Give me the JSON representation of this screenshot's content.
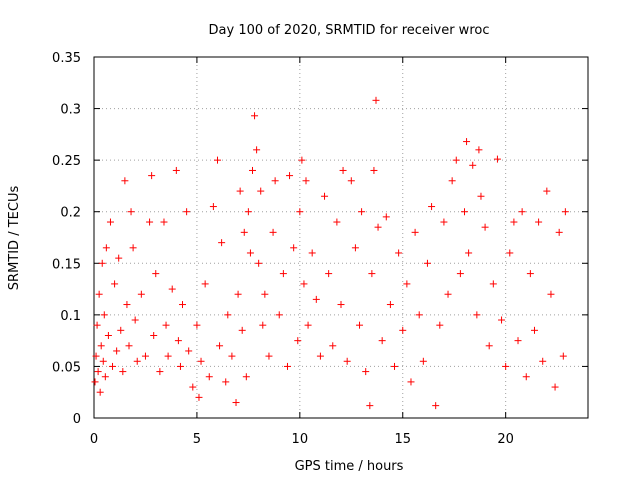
{
  "chart_data": {
    "type": "scatter",
    "title": "Day 100 of 2020, SRMTID for receiver wroc",
    "xlabel": "GPS time / hours",
    "ylabel": "SRMTID / TECUs",
    "xlim": [
      0,
      24
    ],
    "ylim": [
      0,
      0.35
    ],
    "x_ticks": [
      0,
      5,
      10,
      15,
      20
    ],
    "x_tick_labels": [
      "0",
      "5",
      "10",
      "15",
      "20"
    ],
    "y_ticks": [
      0,
      0.05,
      0.1,
      0.15,
      0.2,
      0.25,
      0.3,
      0.35
    ],
    "y_tick_labels": [
      "0",
      "0.05",
      "0.1",
      "0.15",
      "0.2",
      "0.25",
      "0.3",
      "0.35"
    ],
    "grid": true,
    "marker": "+",
    "color": "#ff0000",
    "series": [
      {
        "name": "SRMTID",
        "points": [
          [
            0.05,
            0.035
          ],
          [
            0.1,
            0.06
          ],
          [
            0.15,
            0.09
          ],
          [
            0.2,
            0.045
          ],
          [
            0.25,
            0.12
          ],
          [
            0.3,
            0.025
          ],
          [
            0.35,
            0.07
          ],
          [
            0.4,
            0.15
          ],
          [
            0.45,
            0.055
          ],
          [
            0.5,
            0.1
          ],
          [
            0.55,
            0.04
          ],
          [
            0.6,
            0.165
          ],
          [
            0.7,
            0.08
          ],
          [
            0.8,
            0.19
          ],
          [
            0.9,
            0.05
          ],
          [
            1.0,
            0.13
          ],
          [
            1.1,
            0.065
          ],
          [
            1.2,
            0.155
          ],
          [
            1.3,
            0.085
          ],
          [
            1.4,
            0.045
          ],
          [
            1.5,
            0.23
          ],
          [
            1.6,
            0.11
          ],
          [
            1.7,
            0.07
          ],
          [
            1.8,
            0.2
          ],
          [
            1.9,
            0.165
          ],
          [
            2.0,
            0.095
          ],
          [
            2.1,
            0.055
          ],
          [
            2.3,
            0.12
          ],
          [
            2.5,
            0.06
          ],
          [
            2.7,
            0.19
          ],
          [
            2.8,
            0.235
          ],
          [
            2.9,
            0.08
          ],
          [
            3.0,
            0.14
          ],
          [
            3.2,
            0.045
          ],
          [
            3.4,
            0.19
          ],
          [
            3.5,
            0.09
          ],
          [
            3.6,
            0.06
          ],
          [
            3.8,
            0.125
          ],
          [
            4.0,
            0.24
          ],
          [
            4.1,
            0.075
          ],
          [
            4.2,
            0.05
          ],
          [
            4.3,
            0.11
          ],
          [
            4.5,
            0.2
          ],
          [
            4.6,
            0.065
          ],
          [
            4.8,
            0.03
          ],
          [
            5.0,
            0.09
          ],
          [
            5.1,
            0.02
          ],
          [
            5.2,
            0.055
          ],
          [
            5.4,
            0.13
          ],
          [
            5.6,
            0.04
          ],
          [
            5.8,
            0.205
          ],
          [
            6.0,
            0.25
          ],
          [
            6.1,
            0.07
          ],
          [
            6.2,
            0.17
          ],
          [
            6.4,
            0.035
          ],
          [
            6.5,
            0.1
          ],
          [
            6.7,
            0.06
          ],
          [
            6.9,
            0.015
          ],
          [
            7.0,
            0.12
          ],
          [
            7.1,
            0.22
          ],
          [
            7.2,
            0.085
          ],
          [
            7.3,
            0.18
          ],
          [
            7.4,
            0.04
          ],
          [
            7.5,
            0.2
          ],
          [
            7.6,
            0.16
          ],
          [
            7.7,
            0.24
          ],
          [
            7.8,
            0.293
          ],
          [
            7.9,
            0.26
          ],
          [
            8.0,
            0.15
          ],
          [
            8.1,
            0.22
          ],
          [
            8.2,
            0.09
          ],
          [
            8.3,
            0.12
          ],
          [
            8.5,
            0.06
          ],
          [
            8.7,
            0.18
          ],
          [
            8.8,
            0.23
          ],
          [
            9.0,
            0.1
          ],
          [
            9.2,
            0.14
          ],
          [
            9.4,
            0.05
          ],
          [
            9.5,
            0.235
          ],
          [
            9.7,
            0.165
          ],
          [
            9.9,
            0.075
          ],
          [
            10.0,
            0.2
          ],
          [
            10.1,
            0.25
          ],
          [
            10.2,
            0.13
          ],
          [
            10.3,
            0.23
          ],
          [
            10.4,
            0.09
          ],
          [
            10.6,
            0.16
          ],
          [
            10.8,
            0.115
          ],
          [
            11.0,
            0.06
          ],
          [
            11.2,
            0.215
          ],
          [
            11.4,
            0.14
          ],
          [
            11.6,
            0.07
          ],
          [
            11.8,
            0.19
          ],
          [
            12.0,
            0.11
          ],
          [
            12.1,
            0.24
          ],
          [
            12.3,
            0.055
          ],
          [
            12.5,
            0.23
          ],
          [
            12.7,
            0.165
          ],
          [
            12.9,
            0.09
          ],
          [
            13.0,
            0.2
          ],
          [
            13.2,
            0.045
          ],
          [
            13.4,
            0.012
          ],
          [
            13.5,
            0.14
          ],
          [
            13.6,
            0.24
          ],
          [
            13.7,
            0.308
          ],
          [
            13.8,
            0.185
          ],
          [
            14.0,
            0.075
          ],
          [
            14.2,
            0.195
          ],
          [
            14.4,
            0.11
          ],
          [
            14.6,
            0.05
          ],
          [
            14.8,
            0.16
          ],
          [
            15.0,
            0.085
          ],
          [
            15.2,
            0.13
          ],
          [
            15.4,
            0.035
          ],
          [
            15.6,
            0.18
          ],
          [
            15.8,
            0.1
          ],
          [
            16.0,
            0.055
          ],
          [
            16.2,
            0.15
          ],
          [
            16.4,
            0.205
          ],
          [
            16.6,
            0.012
          ],
          [
            16.8,
            0.09
          ],
          [
            17.0,
            0.19
          ],
          [
            17.2,
            0.12
          ],
          [
            17.4,
            0.23
          ],
          [
            17.6,
            0.25
          ],
          [
            17.8,
            0.14
          ],
          [
            18.0,
            0.2
          ],
          [
            18.1,
            0.268
          ],
          [
            18.2,
            0.16
          ],
          [
            18.4,
            0.245
          ],
          [
            18.6,
            0.1
          ],
          [
            18.7,
            0.26
          ],
          [
            18.8,
            0.215
          ],
          [
            19.0,
            0.185
          ],
          [
            19.2,
            0.07
          ],
          [
            19.4,
            0.13
          ],
          [
            19.6,
            0.251
          ],
          [
            19.8,
            0.095
          ],
          [
            20.0,
            0.05
          ],
          [
            20.2,
            0.16
          ],
          [
            20.4,
            0.19
          ],
          [
            20.6,
            0.075
          ],
          [
            20.8,
            0.2
          ],
          [
            21.0,
            0.04
          ],
          [
            21.2,
            0.14
          ],
          [
            21.4,
            0.085
          ],
          [
            21.6,
            0.19
          ],
          [
            21.8,
            0.055
          ],
          [
            22.0,
            0.22
          ],
          [
            22.2,
            0.12
          ],
          [
            22.4,
            0.03
          ],
          [
            22.6,
            0.18
          ],
          [
            22.8,
            0.06
          ],
          [
            22.9,
            0.2
          ]
        ]
      }
    ]
  }
}
